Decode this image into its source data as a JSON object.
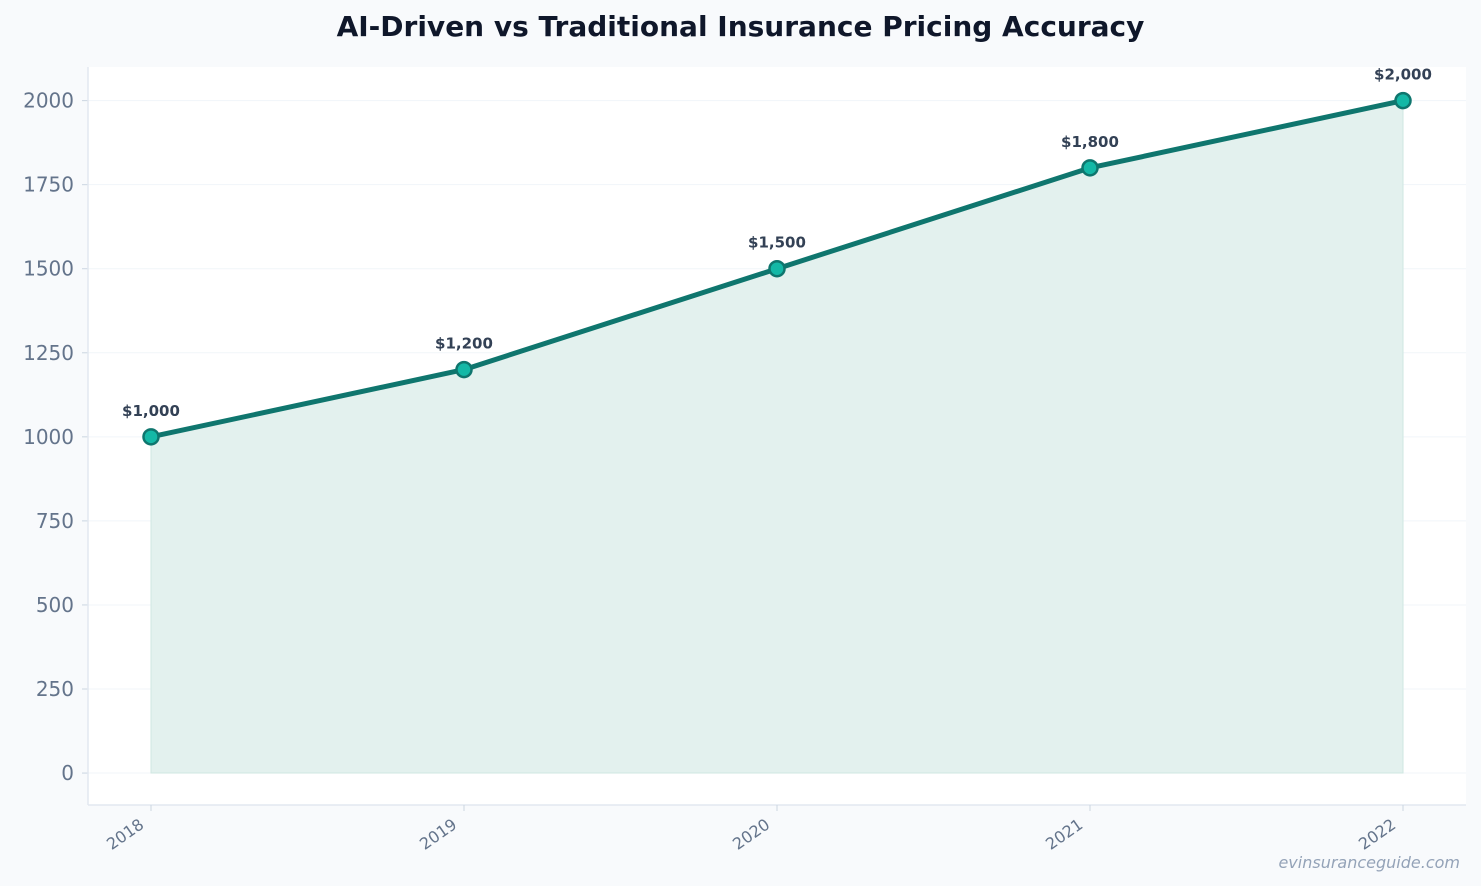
{
  "chart_data": {
    "type": "area",
    "title": "AI-Driven vs Traditional Insurance Pricing Accuracy",
    "categories": [
      "2018",
      "2019",
      "2020",
      "2021",
      "2022"
    ],
    "values": [
      1000,
      1200,
      1500,
      1800,
      2000
    ],
    "data_labels": [
      "$1,000",
      "$1,200",
      "$1,500",
      "$1,800",
      "$2,000"
    ],
    "ylim": [
      -95,
      2100
    ],
    "y_ticks": [
      0,
      250,
      500,
      750,
      1000,
      1250,
      1500,
      1750,
      2000
    ],
    "xlabel": "",
    "ylabel": "",
    "grid": true,
    "legend": "none",
    "colors": {
      "line": "#0f766e",
      "marker_fill": "#14b8a6",
      "area_fill": "#e3f1ee",
      "grid": "#f1f5f9",
      "axis": "#e2e8f0"
    }
  },
  "watermark": "evinsuranceguide.com"
}
